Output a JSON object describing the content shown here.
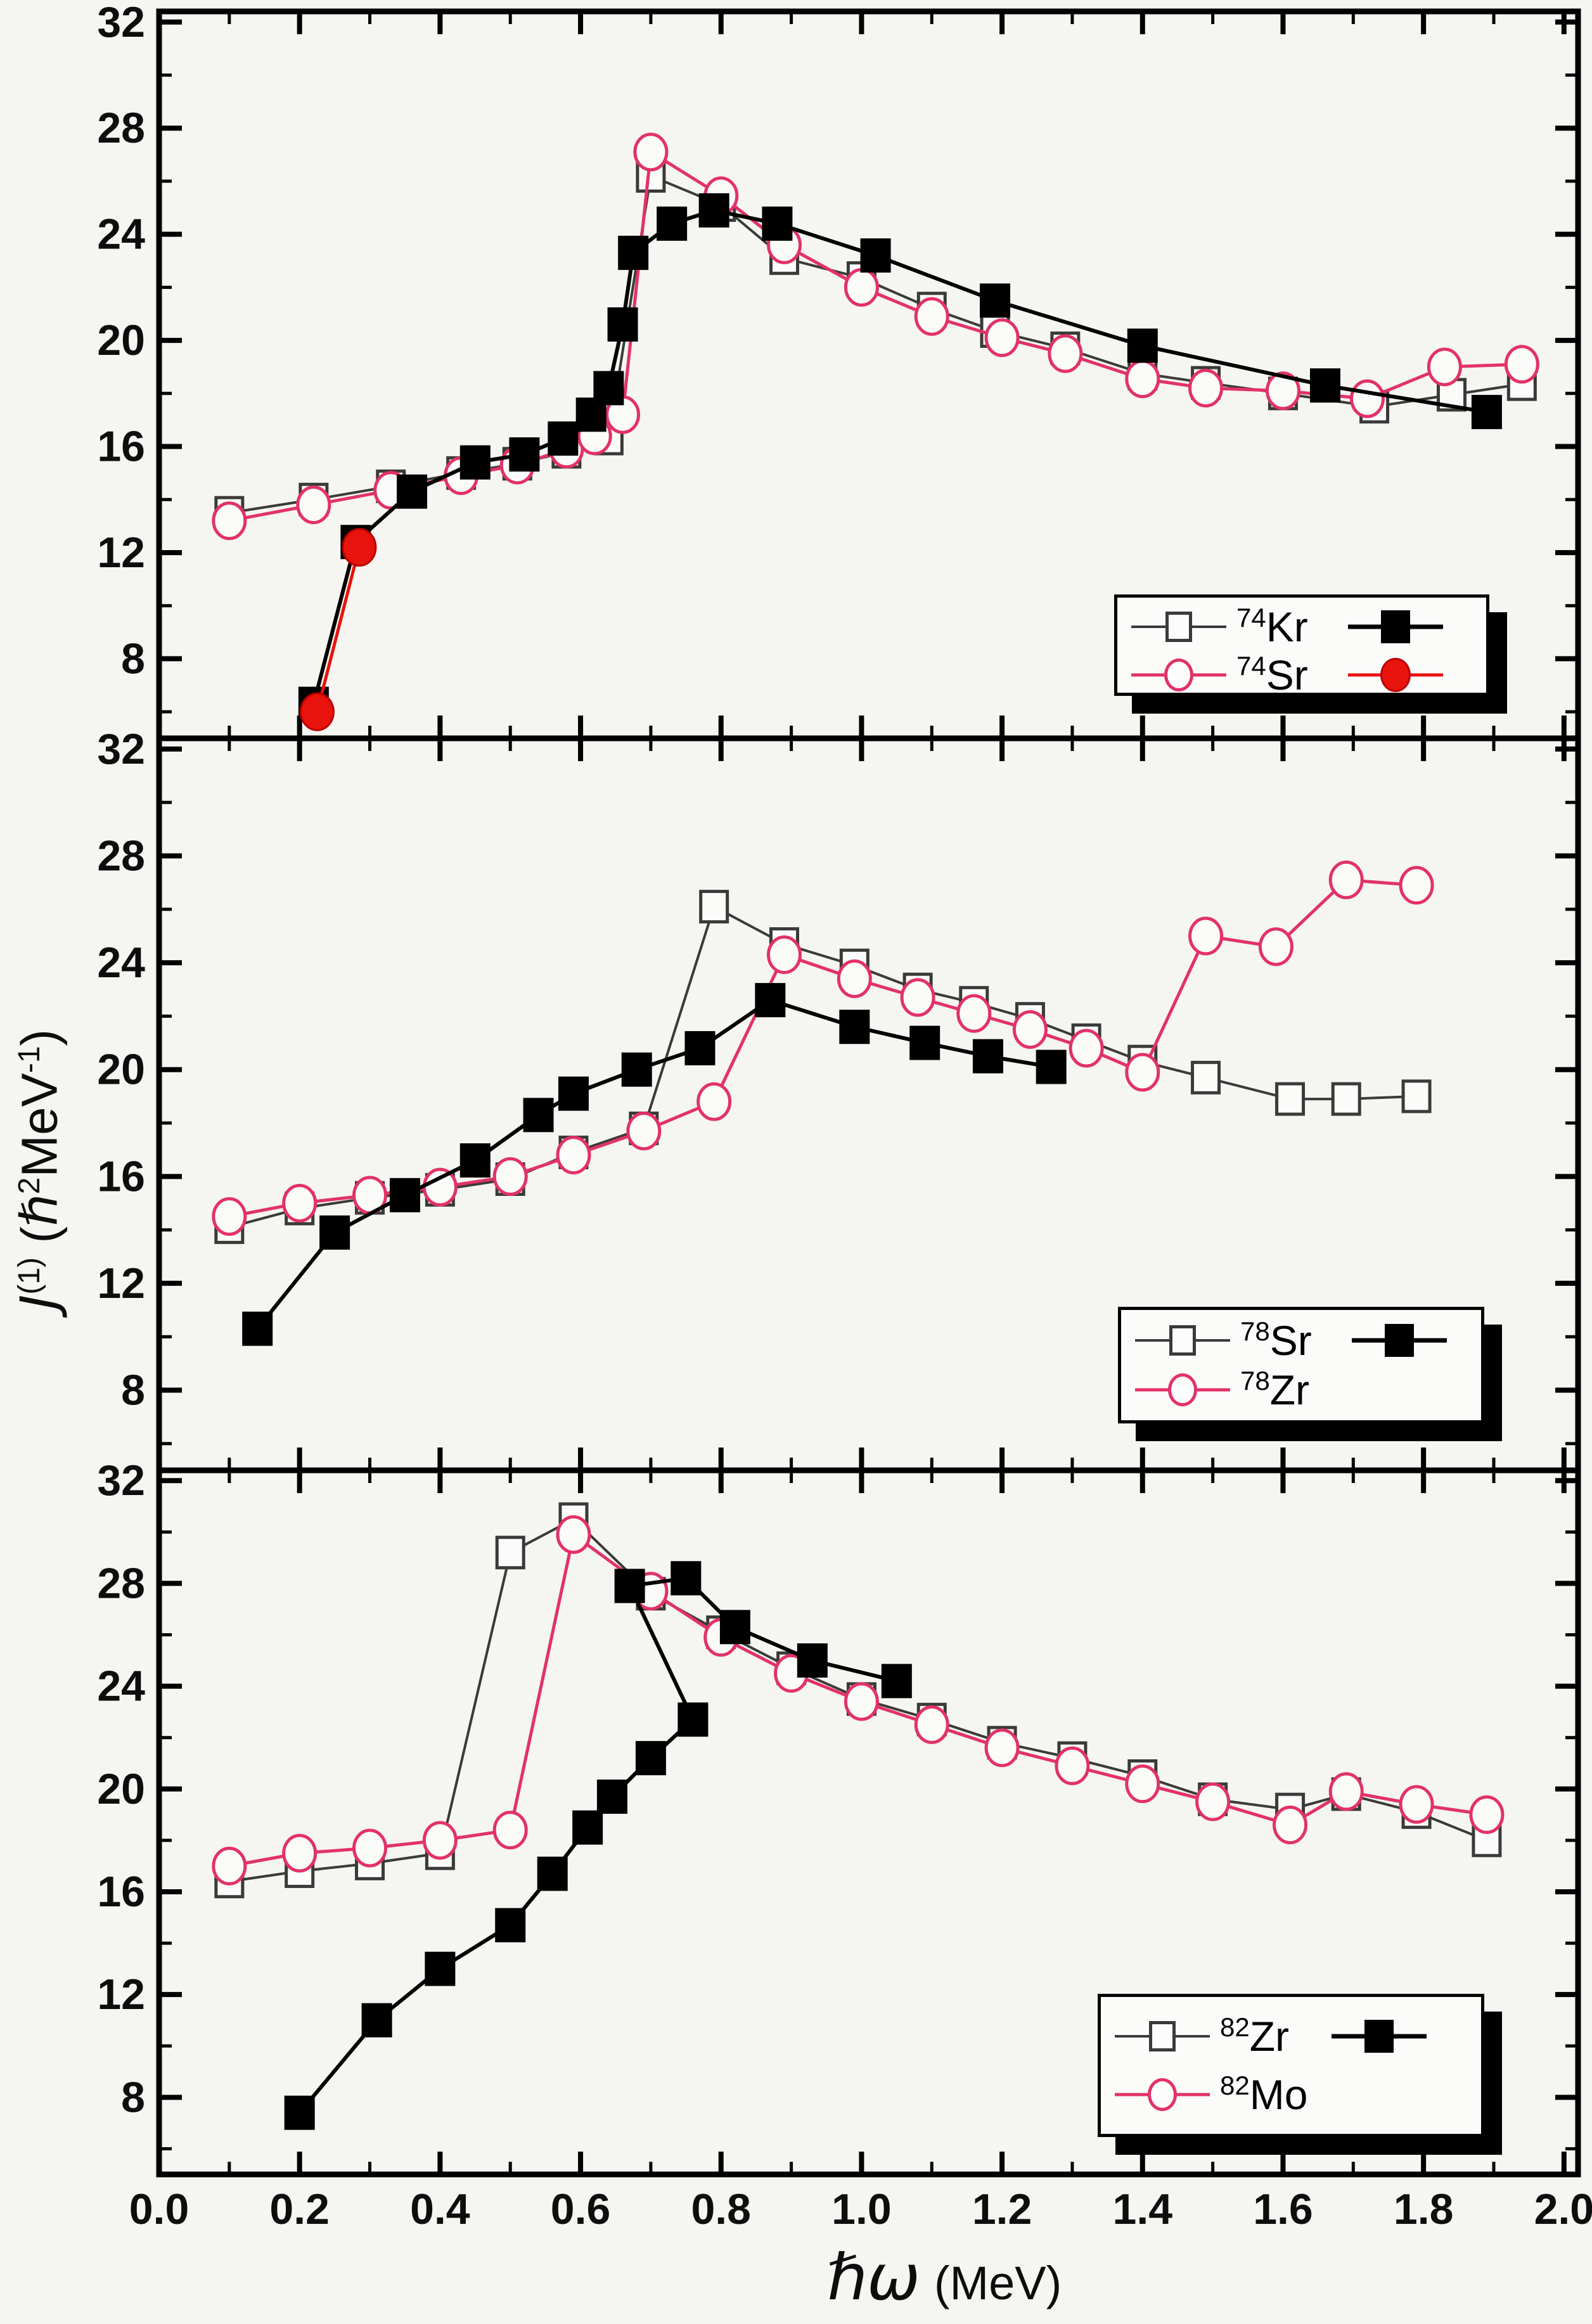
{
  "figure": {
    "background": "#f5f5f2",
    "axis_color": "#000000"
  },
  "chart_data": {
    "type": "line",
    "title": "",
    "xlabel_symbol": "ℏω",
    "xlabel_unit": "(MeV)",
    "ylabel": {
      "j": "J",
      "j_sup": "(1)",
      "paren_open": "(",
      "hbar": "ℏ",
      "hbar_sup": "2",
      "mev": "MeV",
      "mev_sup": "-1",
      "paren_close": ")"
    },
    "x_axis": {
      "min": 0,
      "max": 2.02,
      "major_tick_values": [
        0.2,
        0.4,
        0.6,
        0.8,
        1.0,
        1.2,
        1.4,
        1.6,
        1.8,
        2.0
      ],
      "minor_tick_values": [
        0.1,
        0.3,
        0.5,
        0.7,
        0.9,
        1.1,
        1.3,
        1.5,
        1.7,
        1.9
      ],
      "tick_label_values": [
        0.0,
        0.2,
        0.4,
        0.6,
        0.8,
        1.0,
        1.2,
        1.4,
        1.6,
        1.8,
        2.0
      ],
      "tick_labels": [
        "0.0",
        "0.2",
        "0.4",
        "0.6",
        "0.8",
        "1.0",
        "1.2",
        "1.4",
        "1.6",
        "1.8",
        "2.0"
      ]
    },
    "y_axis": {
      "min": 5.0,
      "max": 32.4,
      "major_tick_values": [
        32,
        28,
        24,
        20,
        16,
        12,
        8
      ],
      "minor_tick_values": [
        30,
        26,
        22,
        18,
        14,
        10,
        6
      ],
      "tick_labels": [
        "32",
        "28",
        "24",
        "20",
        "16",
        "12",
        "8"
      ]
    },
    "panels": [
      {
        "name": "74Kr-74Sr",
        "legend": [
          {
            "mass": "74",
            "element": "Kr"
          },
          {
            "mass": "74",
            "element": "Sr"
          }
        ],
        "series": [
          {
            "id": "kr74-open",
            "marker": "square-open",
            "marker_color": "#3a3a3a",
            "line_color": "#3a3a3a",
            "line_width": 4,
            "points": [
              [
                0.1,
                13.5
              ],
              [
                0.22,
                14.0
              ],
              [
                0.33,
                14.5
              ],
              [
                0.43,
                15.0
              ],
              [
                0.51,
                15.35
              ],
              [
                0.58,
                15.8
              ],
              [
                0.64,
                16.3
              ],
              [
                0.7,
                26.2
              ],
              [
                0.8,
                25.1
              ],
              [
                0.89,
                23.1
              ],
              [
                1.0,
                22.35
              ],
              [
                1.1,
                21.2
              ],
              [
                1.19,
                20.35
              ],
              [
                1.29,
                19.7
              ],
              [
                1.4,
                18.75
              ],
              [
                1.49,
                18.4
              ],
              [
                1.6,
                18.0
              ],
              [
                1.73,
                17.5
              ],
              [
                1.84,
                17.95
              ],
              [
                1.94,
                18.35
              ]
            ]
          },
          {
            "id": "sr74-open",
            "marker": "circle-open",
            "marker_color": "#e23267",
            "line_color": "#e23267",
            "line_width": 5,
            "points": [
              [
                0.1,
                13.2
              ],
              [
                0.22,
                13.8
              ],
              [
                0.33,
                14.35
              ],
              [
                0.43,
                14.9
              ],
              [
                0.51,
                15.3
              ],
              [
                0.58,
                15.9
              ],
              [
                0.62,
                16.4
              ],
              [
                0.66,
                17.2
              ],
              [
                0.7,
                27.1
              ],
              [
                0.8,
                25.45
              ],
              [
                0.89,
                23.6
              ],
              [
                1.0,
                22.0
              ],
              [
                1.1,
                20.9
              ],
              [
                1.2,
                20.1
              ],
              [
                1.29,
                19.5
              ],
              [
                1.4,
                18.55
              ],
              [
                1.49,
                18.2
              ],
              [
                1.6,
                18.1
              ],
              [
                1.72,
                17.8
              ],
              [
                1.83,
                19.0
              ],
              [
                1.94,
                19.1
              ]
            ]
          },
          {
            "id": "kr74-filled",
            "marker": "square-filled",
            "marker_color": "#000000",
            "line_color": "#000000",
            "line_width": 6,
            "points": [
              [
                0.22,
                6.3
              ],
              [
                0.28,
                12.4
              ],
              [
                0.36,
                14.3
              ],
              [
                0.45,
                15.4
              ],
              [
                0.52,
                15.7
              ],
              [
                0.575,
                16.3
              ],
              [
                0.615,
                17.2
              ],
              [
                0.64,
                18.2
              ],
              [
                0.66,
                20.6
              ],
              [
                0.675,
                23.3
              ],
              [
                0.73,
                24.4
              ],
              [
                0.79,
                24.9
              ],
              [
                0.88,
                24.4
              ],
              [
                1.02,
                23.2
              ],
              [
                1.19,
                21.5
              ],
              [
                1.4,
                19.8
              ],
              [
                1.66,
                18.3
              ],
              [
                1.89,
                17.3
              ]
            ]
          },
          {
            "id": "sr74-filled",
            "marker": "circle-filled",
            "marker_color": "#e8130c",
            "line_color": "#e8130c",
            "line_width": 5,
            "points": [
              [
                0.225,
                6.0
              ],
              [
                0.285,
                12.2
              ]
            ]
          }
        ]
      },
      {
        "name": "78Sr-78Zr",
        "legend": [
          {
            "mass": "78",
            "element": "Sr"
          },
          {
            "mass": "78",
            "element": "Zr"
          }
        ],
        "series": [
          {
            "id": "sr78-open",
            "marker": "square-open",
            "marker_color": "#3a3a3a",
            "line_color": "#3a3a3a",
            "line_width": 4,
            "points": [
              [
                0.1,
                14.1
              ],
              [
                0.2,
                14.8
              ],
              [
                0.3,
                15.2
              ],
              [
                0.4,
                15.5
              ],
              [
                0.5,
                15.9
              ],
              [
                0.59,
                16.9
              ],
              [
                0.69,
                17.8
              ],
              [
                0.79,
                26.1
              ],
              [
                0.89,
                24.7
              ],
              [
                0.99,
                23.9
              ],
              [
                1.08,
                23.0
              ],
              [
                1.16,
                22.5
              ],
              [
                1.24,
                21.9
              ],
              [
                1.32,
                21.1
              ],
              [
                1.4,
                20.3
              ],
              [
                1.49,
                19.7
              ],
              [
                1.61,
                18.9
              ],
              [
                1.69,
                18.9
              ],
              [
                1.79,
                19.0
              ]
            ]
          },
          {
            "id": "zr78-open",
            "marker": "circle-open",
            "marker_color": "#e23267",
            "line_color": "#e23267",
            "line_width": 5,
            "points": [
              [
                0.1,
                14.5
              ],
              [
                0.2,
                15.0
              ],
              [
                0.3,
                15.3
              ],
              [
                0.4,
                15.6
              ],
              [
                0.5,
                16.0
              ],
              [
                0.59,
                16.8
              ],
              [
                0.69,
                17.7
              ],
              [
                0.79,
                18.8
              ],
              [
                0.89,
                24.3
              ],
              [
                0.99,
                23.4
              ],
              [
                1.08,
                22.7
              ],
              [
                1.16,
                22.1
              ],
              [
                1.24,
                21.5
              ],
              [
                1.32,
                20.8
              ],
              [
                1.4,
                19.9
              ],
              [
                1.49,
                25.0
              ],
              [
                1.59,
                24.6
              ],
              [
                1.69,
                27.1
              ],
              [
                1.79,
                26.9
              ]
            ]
          },
          {
            "id": "sr78-filled",
            "marker": "square-filled",
            "marker_color": "#000000",
            "line_color": "#000000",
            "line_width": 6,
            "points": [
              [
                0.14,
                10.3
              ],
              [
                0.25,
                13.9
              ],
              [
                0.35,
                15.3
              ],
              [
                0.45,
                16.6
              ],
              [
                0.54,
                18.3
              ],
              [
                0.59,
                19.1
              ],
              [
                0.68,
                20.0
              ],
              [
                0.77,
                20.8
              ],
              [
                0.87,
                22.6
              ],
              [
                0.99,
                21.6
              ],
              [
                1.09,
                21.0
              ],
              [
                1.18,
                20.5
              ],
              [
                1.27,
                20.1
              ]
            ]
          }
        ]
      },
      {
        "name": "82Zr-82Mo",
        "legend": [
          {
            "mass": "82",
            "element": "Zr"
          },
          {
            "mass": "82",
            "element": "Mo"
          }
        ],
        "series": [
          {
            "id": "zr82-open",
            "marker": "square-open",
            "marker_color": "#3a3a3a",
            "line_color": "#3a3a3a",
            "line_width": 4,
            "points": [
              [
                0.1,
                16.4
              ],
              [
                0.2,
                16.8
              ],
              [
                0.3,
                17.1
              ],
              [
                0.4,
                17.5
              ],
              [
                0.5,
                29.2
              ],
              [
                0.59,
                30.5
              ],
              [
                0.7,
                27.6
              ],
              [
                0.8,
                26.1
              ],
              [
                0.9,
                24.7
              ],
              [
                1.0,
                23.5
              ],
              [
                1.1,
                22.7
              ],
              [
                1.2,
                21.8
              ],
              [
                1.3,
                21.2
              ],
              [
                1.4,
                20.5
              ],
              [
                1.5,
                19.6
              ],
              [
                1.61,
                19.2
              ],
              [
                1.69,
                19.8
              ],
              [
                1.79,
                19.1
              ],
              [
                1.89,
                18.0
              ]
            ]
          },
          {
            "id": "mo82-open",
            "marker": "circle-open",
            "marker_color": "#e23267",
            "line_color": "#e23267",
            "line_width": 5,
            "points": [
              [
                0.1,
                17.0
              ],
              [
                0.2,
                17.5
              ],
              [
                0.3,
                17.7
              ],
              [
                0.4,
                18.0
              ],
              [
                0.5,
                18.4
              ],
              [
                0.59,
                29.9
              ],
              [
                0.7,
                27.7
              ],
              [
                0.8,
                25.9
              ],
              [
                0.9,
                24.5
              ],
              [
                1.0,
                23.4
              ],
              [
                1.1,
                22.5
              ],
              [
                1.2,
                21.6
              ],
              [
                1.3,
                20.9
              ],
              [
                1.4,
                20.2
              ],
              [
                1.5,
                19.5
              ],
              [
                1.61,
                18.6
              ],
              [
                1.69,
                19.9
              ],
              [
                1.79,
                19.4
              ],
              [
                1.89,
                19.0
              ]
            ]
          },
          {
            "id": "zr82-filled",
            "marker": "square-filled",
            "marker_color": "#000000",
            "line_color": "#000000",
            "line_width": 6,
            "points": [
              [
                0.2,
                7.4
              ],
              [
                0.31,
                11.0
              ],
              [
                0.4,
                13.0
              ],
              [
                0.5,
                14.7
              ],
              [
                0.56,
                16.7
              ],
              [
                0.61,
                18.5
              ],
              [
                0.645,
                19.7
              ],
              [
                0.7,
                21.2
              ],
              [
                0.76,
                22.7
              ],
              [
                0.67,
                27.9
              ],
              [
                0.75,
                28.2
              ],
              [
                0.82,
                26.3
              ],
              [
                0.93,
                25.0
              ],
              [
                1.05,
                24.2
              ]
            ]
          }
        ]
      }
    ]
  }
}
